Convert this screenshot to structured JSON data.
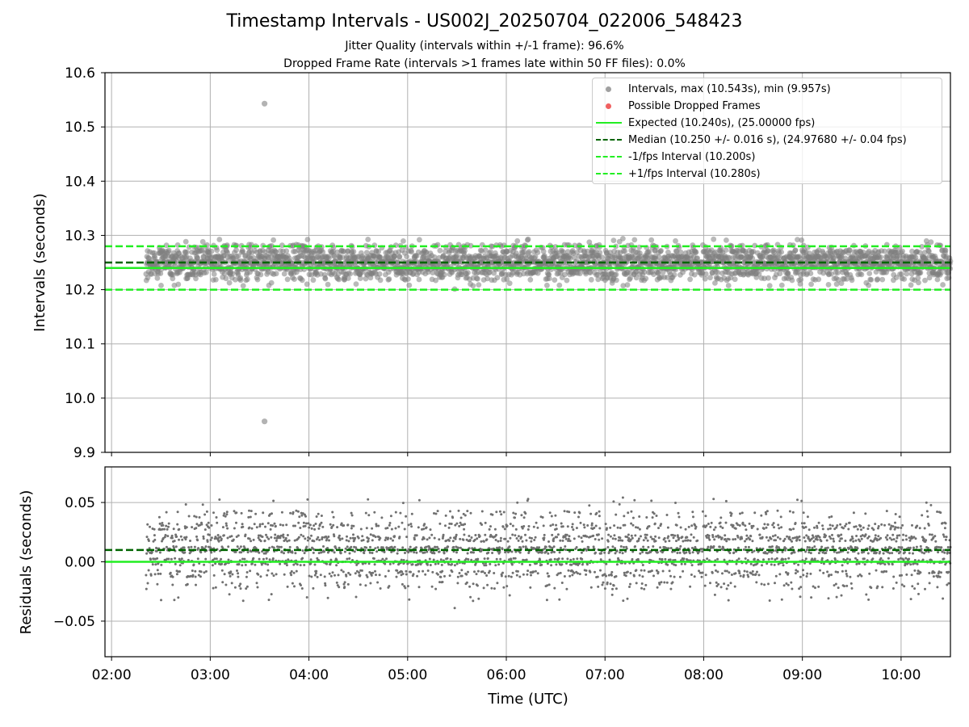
{
  "chart_data": [
    {
      "type": "scatter",
      "title": "Timestamp Intervals - US002J_20250704_022006_548423",
      "subtitle_lines": [
        "Jitter Quality (intervals within +/-1 frame): 96.6%",
        "Dropped Frame Rate (intervals >1 frames late within 50 FF files): 0.0%"
      ],
      "xlabel": "",
      "ylabel": "Intervals (seconds)",
      "xlim": [
        "01:56",
        "10:30"
      ],
      "ylim": [
        9.9,
        10.6
      ],
      "yticks": [
        "9.9",
        "10.0",
        "10.1",
        "10.2",
        "10.3",
        "10.4",
        "10.5",
        "10.6"
      ],
      "grid": true,
      "legend_position": "upper-right",
      "series": [
        {
          "name": "Intervals, max (10.543s), min (9.957s)",
          "kind": "points",
          "color": "#808080",
          "x_range": [
            "02:21",
            "10:30"
          ],
          "y_band": [
            10.197,
            10.3
          ],
          "count_estimate": 2850,
          "outliers": [
            {
              "x": "03:33",
              "y": 10.543
            },
            {
              "x": "03:33",
              "y": 9.957
            }
          ]
        },
        {
          "name": "Possible Dropped Frames",
          "kind": "points",
          "color": "#f05050",
          "points": []
        },
        {
          "name": "Expected (10.240s), (25.00000 fps)",
          "kind": "hline",
          "y": 10.24,
          "color": "#22ee22",
          "style": "solid"
        },
        {
          "name": "Median (10.250 +/- 0.016 s), (24.97680 +/- 0.04 fps)",
          "kind": "hline",
          "y": 10.25,
          "color": "#006400",
          "style": "dashed"
        },
        {
          "name": "-1/fps Interval (10.200s)",
          "kind": "hline",
          "y": 10.2,
          "color": "#22ee22",
          "style": "dashed"
        },
        {
          "name": "+1/fps Interval (10.280s)",
          "kind": "hline",
          "y": 10.28,
          "color": "#22ee22",
          "style": "dashed"
        }
      ]
    },
    {
      "type": "scatter",
      "xlabel": "Time (UTC)",
      "ylabel": "Residuals (seconds)",
      "xlim": [
        "01:56",
        "10:30"
      ],
      "ylim": [
        -0.08,
        0.08
      ],
      "xticks": [
        "02:00",
        "03:00",
        "04:00",
        "05:00",
        "06:00",
        "07:00",
        "08:00",
        "09:00",
        "10:00"
      ],
      "yticks": [
        "0.05",
        "0.00",
        "−0.05"
      ],
      "grid": true,
      "series": [
        {
          "kind": "points",
          "color": "#707070",
          "x_range": [
            "02:21",
            "10:30"
          ],
          "y_band": [
            -0.043,
            0.06
          ],
          "count_estimate": 2850
        },
        {
          "kind": "hline",
          "y": 0.0,
          "color": "#22ee22",
          "style": "solid"
        },
        {
          "kind": "hline",
          "y": 0.01,
          "color": "#006400",
          "style": "dashed"
        }
      ]
    }
  ],
  "legend": [
    {
      "label": "Intervals, max (10.543s), min (9.957s)",
      "symbol": "dot",
      "color": "#a0a0a0"
    },
    {
      "label": "Possible Dropped Frames",
      "symbol": "dot",
      "color": "#f06060"
    },
    {
      "label": "Expected (10.240s), (25.00000 fps)",
      "symbol": "solid",
      "color": "#22ee22"
    },
    {
      "label": "Median (10.250 +/- 0.016 s), (24.97680 +/- 0.04 fps)",
      "symbol": "dashed",
      "color": "#006400"
    },
    {
      "label": "-1/fps Interval (10.200s)",
      "symbol": "dashed",
      "color": "#22ee22"
    },
    {
      "label": "+1/fps Interval (10.280s)",
      "symbol": "dashed",
      "color": "#22ee22"
    }
  ]
}
